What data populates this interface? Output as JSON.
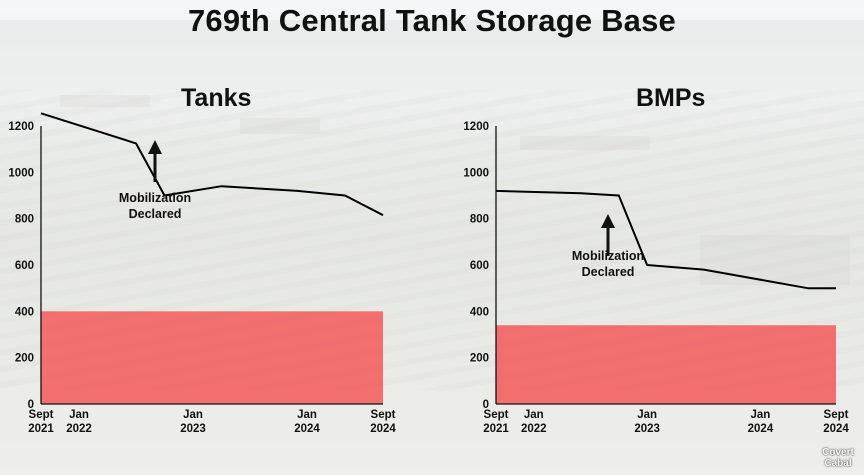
{
  "title": "769th Central Tank Storage Base",
  "watermark": [
    "Covert",
    "Cabal"
  ],
  "colors": {
    "line": "#000000",
    "band": "#f26464"
  },
  "chart_data": [
    {
      "type": "line",
      "title": "Tanks",
      "xlabel": "",
      "ylabel": "",
      "ylim": [
        0,
        1200
      ],
      "yticks": [
        0,
        200,
        400,
        600,
        800,
        1000,
        1200
      ],
      "xlim": [
        "2021-09",
        "2024-09"
      ],
      "xticks": [
        {
          "x": "2021-09",
          "label": [
            "Sept",
            "2021"
          ]
        },
        {
          "x": "2022-01",
          "label": [
            "Jan",
            "2022"
          ]
        },
        {
          "x": "2023-01",
          "label": [
            "Jan",
            "2023"
          ]
        },
        {
          "x": "2024-01",
          "label": [
            "Jan",
            "2024"
          ]
        },
        {
          "x": "2024-09",
          "label": [
            "Sept",
            "2024"
          ]
        }
      ],
      "series": [
        {
          "x": [
            "2021-09",
            "2022-02",
            "2022-07",
            "2022-10",
            "2023-04",
            "2023-12",
            "2024-05",
            "2024-09"
          ],
          "y": [
            1255,
            1190,
            1125,
            900,
            940,
            920,
            900,
            815
          ]
        }
      ],
      "band": {
        "from": 0,
        "to": 400
      },
      "annotation": {
        "text": [
          "Mobilization",
          "Declared"
        ],
        "x": "2022-07"
      },
      "grid": false
    },
    {
      "type": "line",
      "title": "BMPs",
      "xlabel": "",
      "ylabel": "",
      "ylim": [
        0,
        1200
      ],
      "yticks": [
        0,
        200,
        400,
        600,
        800,
        1000,
        1200
      ],
      "xlim": [
        "2021-09",
        "2024-09"
      ],
      "xticks": [
        {
          "x": "2021-09",
          "label": [
            "Sept",
            "2021"
          ]
        },
        {
          "x": "2022-01",
          "label": [
            "Jan",
            "2022"
          ]
        },
        {
          "x": "2023-01",
          "label": [
            "Jan",
            "2023"
          ]
        },
        {
          "x": "2024-01",
          "label": [
            "Jan",
            "2024"
          ]
        },
        {
          "x": "2024-09",
          "label": [
            "Sept",
            "2024"
          ]
        }
      ],
      "series": [
        {
          "x": [
            "2021-09",
            "2022-06",
            "2022-10",
            "2023-01",
            "2023-07",
            "2024-06",
            "2024-09"
          ],
          "y": [
            920,
            910,
            900,
            600,
            580,
            500,
            500
          ]
        }
      ],
      "band": {
        "from": 0,
        "to": 340
      },
      "annotation": {
        "text": [
          "Mobilization",
          "Declared"
        ],
        "x": "2022-10"
      },
      "grid": false
    }
  ]
}
